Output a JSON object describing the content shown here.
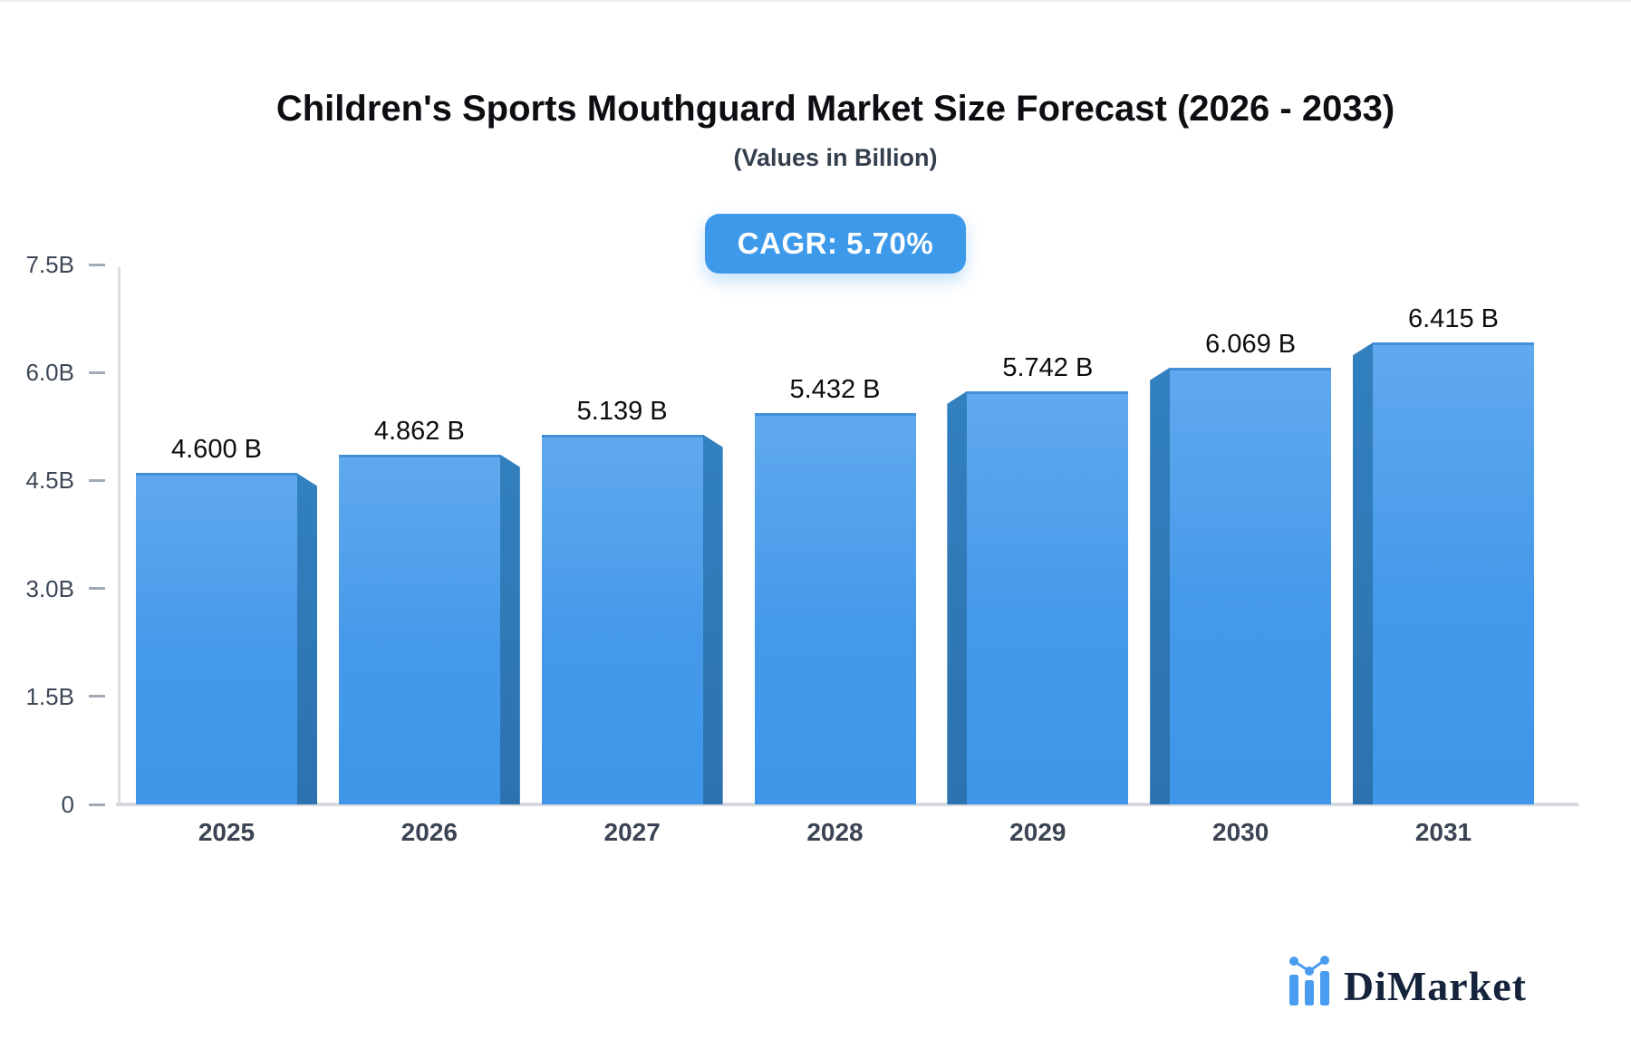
{
  "header": {
    "title": "Children's Sports Mouthguard Market Size Forecast (2026 - 2033)",
    "subtitle": "(Values in Billion)",
    "cagr_label": "CAGR: 5.70%"
  },
  "chart_data": {
    "type": "bar",
    "title": "Children's Sports Mouthguard Market Size Forecast (2026 - 2033)",
    "subtitle": "(Values in Billion)",
    "cagr_percent": "5.70%",
    "categories": [
      "2025",
      "2026",
      "2027",
      "2028",
      "2029",
      "2030",
      "2031"
    ],
    "values": [
      4.6,
      4.862,
      5.139,
      5.432,
      5.742,
      6.069,
      6.415
    ],
    "value_labels": [
      "4.600 B",
      "4.862 B",
      "5.139 B",
      "5.432 B",
      "5.742 B",
      "6.069 B",
      "6.415 B"
    ],
    "xlabel": "",
    "ylabel": "",
    "ylim": [
      0,
      7.5
    ],
    "ytick_values": [
      0,
      1.5,
      3.0,
      4.5,
      6.0,
      7.5
    ],
    "ytick_labels": [
      "0",
      "1.5B",
      "3.0B",
      "4.5B",
      "6.0B",
      "7.5B"
    ],
    "grid": false,
    "legend": "none",
    "bar_style": "3d-extruded-blue"
  },
  "colors": {
    "bar_face_top": "#60a9ee",
    "bar_face_bottom": "#3e96e9",
    "bar_side": "#2d75b4",
    "badge_background": "#3d9aea",
    "badge_text": "#ffffff",
    "axis_line": "#d5d9de",
    "tick_text": "#3c4856",
    "value_text": "#0b0d10",
    "logo_text": "#15243c",
    "logo_icon": "#4a9cf0"
  },
  "footer": {
    "brand": "DiMarket"
  }
}
